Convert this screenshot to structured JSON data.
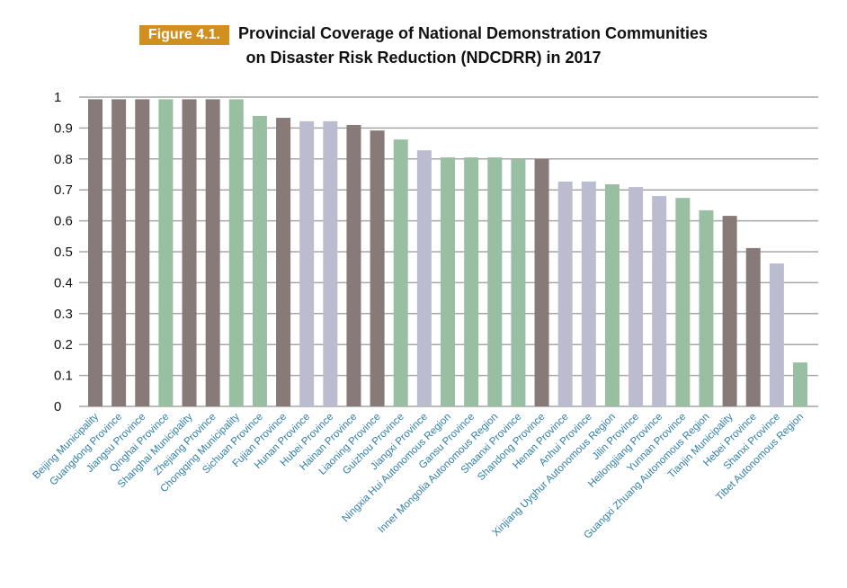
{
  "chart_data": {
    "type": "bar",
    "figure_label": "Figure  4.1.",
    "title_line1": "Provincial Coverage of National Demonstration Communities",
    "title_line2": "on Disaster Risk Reduction (NDCDRR) in 2017",
    "xlabel": "",
    "ylabel": "",
    "ylim": [
      0,
      1
    ],
    "yticks": [
      "0",
      "0.1",
      "0.2",
      "0.3",
      "0.4",
      "0.5",
      "0.6",
      "0.7",
      "0.8",
      "0.9",
      "1"
    ],
    "grid": true,
    "colors": {
      "dark": "#877a79",
      "green": "#98bfa1",
      "lavender": "#bbbcd0"
    },
    "categories": [
      "Beijing Municipality",
      "Guangdong Province",
      "Jiangsu Province",
      "Qinghai Province",
      "Shanghai Municipality",
      "Zhejiang Province",
      "Chongqing Municipality",
      "Sichuan Province",
      "Fujian Province",
      "Hunan Province",
      "Hubei Province",
      "Hainan Province",
      "Liaoning Province",
      "Guizhou Province",
      "Jiangxi Province",
      "Ningxia Hui Autonomous Region",
      "Gansu Province",
      "Inner Mongolia Autonomous Region",
      "Shaanxi Province",
      "Shandong Province",
      "Henan Province",
      "Anhui Province",
      "Xinjiang Uyghur Autonomous Region",
      "Jilin Province",
      "Heilongjiang Province",
      "Yunnan Province",
      "Guangxi Zhuang Autonomous Region",
      "Tianjin Municipality",
      "Hebei Province",
      "Shanxi Province",
      "Tibet Autonomous Region"
    ],
    "values": [
      0.993,
      0.993,
      0.993,
      0.993,
      0.993,
      0.993,
      0.993,
      0.939,
      0.933,
      0.922,
      0.922,
      0.91,
      0.892,
      0.863,
      0.828,
      0.805,
      0.805,
      0.805,
      0.8,
      0.8,
      0.727,
      0.727,
      0.718,
      0.709,
      0.68,
      0.674,
      0.634,
      0.616,
      0.512,
      0.462,
      0.142
    ],
    "bar_colors": [
      "dark",
      "dark",
      "dark",
      "green",
      "dark",
      "dark",
      "green",
      "green",
      "dark",
      "lavender",
      "lavender",
      "dark",
      "dark",
      "green",
      "lavender",
      "green",
      "green",
      "green",
      "green",
      "dark",
      "lavender",
      "lavender",
      "green",
      "lavender",
      "lavender",
      "green",
      "green",
      "dark",
      "dark",
      "lavender",
      "green"
    ]
  }
}
